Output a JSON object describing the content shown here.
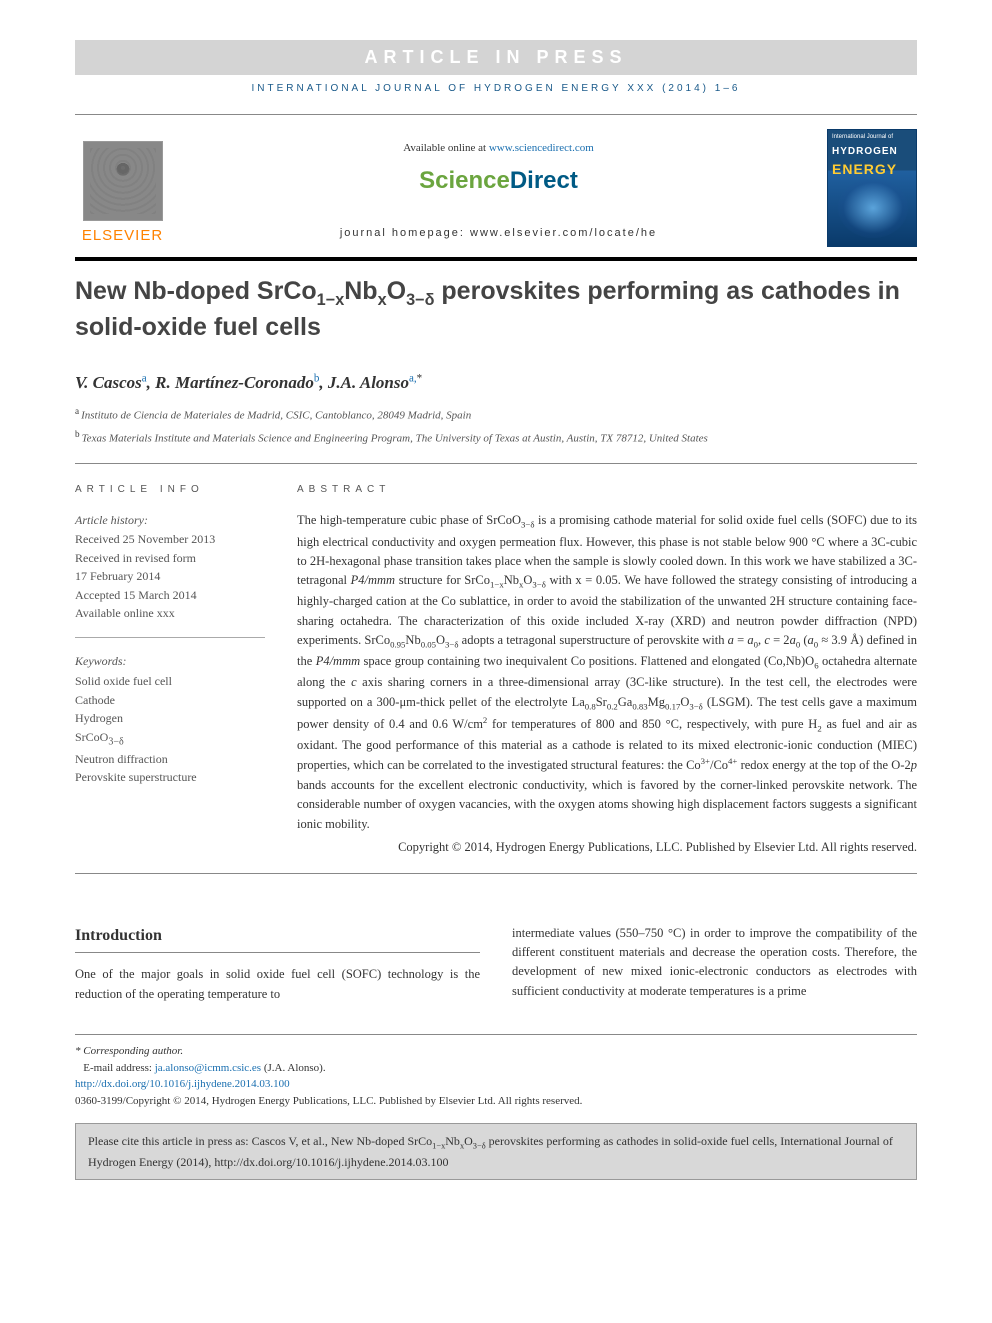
{
  "press_banner": "ARTICLE IN PRESS",
  "journal_ref": "INTERNATIONAL JOURNAL OF HYDROGEN ENERGY XXX (2014) 1–6",
  "header": {
    "elsevier": "ELSEVIER",
    "available_prefix": "Available online at ",
    "available_link": "www.sciencedirect.com",
    "homepage": "journal homepage: www.elsevier.com/locate/he",
    "cover": {
      "top_line": "International Journal of",
      "hydrogen": "HYDROGEN",
      "energy": "ENERGY"
    }
  },
  "title_parts": {
    "p1": "New Nb-doped SrCo",
    "p2": "1−x",
    "p3": "Nb",
    "p4": "x",
    "p5": "O",
    "p6": "3−δ",
    "p7": " perovskites performing as cathodes in solid-oxide fuel cells"
  },
  "authors": {
    "a1": "V. Cascos",
    "a1s": "a",
    "a2": "R. Martínez-Coronado",
    "a2s": "b",
    "a3": "J.A. Alonso",
    "a3s": "a,",
    "a3star": "*"
  },
  "affiliations": {
    "a": "Instituto de Ciencia de Materiales de Madrid, CSIC, Cantoblanco, 28049 Madrid, Spain",
    "b": "Texas Materials Institute and Materials Science and Engineering Program, The University of Texas at Austin, Austin, TX 78712, United States"
  },
  "article_info": {
    "label": "ARTICLE INFO",
    "history_label": "Article history:",
    "lines": [
      "Received 25 November 2013",
      "Received in revised form",
      "17 February 2014",
      "Accepted 15 March 2014",
      "Available online xxx"
    ],
    "keywords_label": "Keywords:",
    "keywords": [
      "Solid oxide fuel cell",
      "Cathode",
      "Hydrogen",
      "SrCoO3−δ",
      "Neutron diffraction",
      "Perovskite superstructure"
    ]
  },
  "abstract": {
    "label": "ABSTRACT",
    "body": "The high-temperature cubic phase of SrCoO3−δ is a promising cathode material for solid oxide fuel cells (SOFC) due to its high electrical conductivity and oxygen permeation flux. However, this phase is not stable below 900 °C where a 3C-cubic to 2H-hexagonal phase transition takes place when the sample is slowly cooled down. In this work we have stabilized a 3C-tetragonal P4/mmm structure for SrCo1−xNbxO3−δ with x = 0.05. We have followed the strategy consisting of introducing a highly-charged cation at the Co sublattice, in order to avoid the stabilization of the unwanted 2H structure containing face-sharing octahedra. The characterization of this oxide included X-ray (XRD) and neutron powder diffraction (NPD) experiments. SrCo0.95Nb0.05O3−δ adopts a tetragonal superstructure of perovskite with a = a0, c = 2a0 (a0 ≈ 3.9 Å) defined in the P4/mmm space group containing two inequivalent Co positions. Flattened and elongated (Co,Nb)O6 octahedra alternate along the c axis sharing corners in a three-dimensional array (3C-like structure). In the test cell, the electrodes were supported on a 300-μm-thick pellet of the electrolyte La0.8Sr0.2Ga0.83Mg0.17O3−δ (LSGM). The test cells gave a maximum power density of 0.4 and 0.6 W/cm2 for temperatures of 800 and 850 °C, respectively, with pure H2 as fuel and air as oxidant. The good performance of this material as a cathode is related to its mixed electronic-ionic conduction (MIEC) properties, which can be correlated to the investigated structural features: the Co3+/Co4+ redox energy at the top of the O-2p bands accounts for the excellent electronic conductivity, which is favored by the corner-linked perovskite network. The considerable number of oxygen vacancies, with the oxygen atoms showing high displacement factors suggests a significant ionic mobility.",
    "copyright": "Copyright © 2014, Hydrogen Energy Publications, LLC. Published by Elsevier Ltd. All rights reserved."
  },
  "introduction": {
    "heading": "Introduction",
    "left": "One of the major goals in solid oxide fuel cell (SOFC) technology is the reduction of the operating temperature to",
    "right": "intermediate values (550–750 °C) in order to improve the compatibility of the different constituent materials and decrease the operation costs. Therefore, the development of new mixed ionic-electronic conductors as electrodes with sufficient conductivity at moderate temperatures is a prime"
  },
  "footer": {
    "corr": "* Corresponding author.",
    "email_label": "E-mail address: ",
    "email": "ja.alonso@icmm.csic.es",
    "email_name": " (J.A. Alonso).",
    "doi": "http://dx.doi.org/10.1016/j.ijhydene.2014.03.100",
    "issn_line": "0360-3199/Copyright © 2014, Hydrogen Energy Publications, LLC. Published by Elsevier Ltd. All rights reserved."
  },
  "cite_box": {
    "prefix": "Please cite this article in press as: Cascos V, et al., New Nb-doped SrCo",
    "s1": "1−x",
    "mid1": "Nb",
    "s2": "x",
    "mid2": "O",
    "s3": "3−δ",
    "suffix": " perovskites performing as cathodes in solid-oxide fuel cells, International Journal of Hydrogen Energy (2014), http://dx.doi.org/10.1016/j.ijhydene.2014.03.100"
  },
  "colors": {
    "link": "#1a6fb0",
    "elsevier_orange": "#ff8200",
    "sd_green": "#6ba53f",
    "sd_blue": "#005a84"
  }
}
